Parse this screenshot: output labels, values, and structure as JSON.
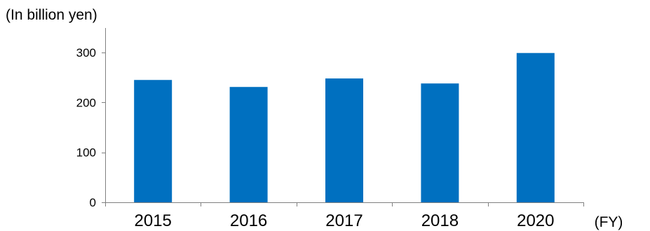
{
  "chart_data": {
    "type": "bar",
    "categories": [
      "2015",
      "2016",
      "2017",
      "2018",
      "2020"
    ],
    "values": [
      245,
      231,
      248,
      238,
      299
    ],
    "ylabel": "(In billion yen)",
    "xlabel": "(FY)",
    "ylim": [
      0,
      300
    ],
    "yticks": [
      "0",
      "100",
      "200",
      "300"
    ],
    "grid": false,
    "legend": "none",
    "bar_color": "#0070C0",
    "axis_color": "#808080"
  }
}
